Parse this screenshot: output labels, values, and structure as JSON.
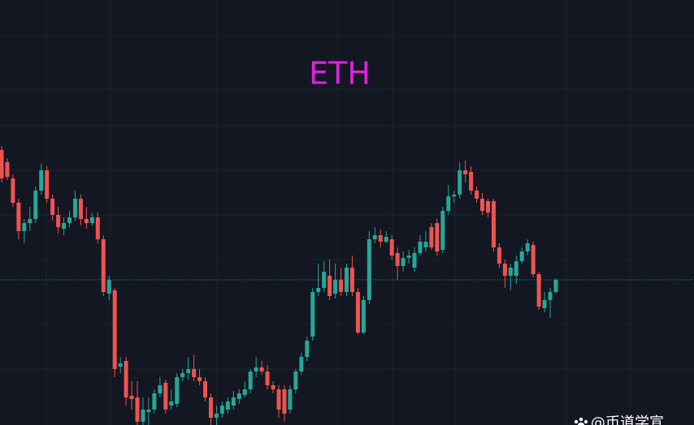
{
  "chart_data": {
    "type": "candlestick",
    "title": "ETH",
    "watermark": "@币道学宣",
    "up_color": "#26a69a",
    "down_color": "#ef5350",
    "title_color": "#e020e0",
    "price_line_color": "#26a69a",
    "current_price": 179,
    "ylim": [
      0,
      524
    ],
    "open": [
      339,
      324,
      304,
      274,
      239,
      249,
      254,
      289,
      314,
      279,
      259,
      242,
      249,
      256,
      279,
      254,
      249,
      256,
      229,
      162,
      166,
      72,
      79,
      36,
      34,
      4,
      16,
      19,
      39,
      52,
      24,
      26,
      59,
      64,
      69,
      59,
      54,
      34,
      9,
      14,
      19,
      24,
      32,
      37,
      44,
      66,
      71,
      66,
      49,
      44,
      44,
      19,
      44,
      66,
      84,
      109,
      164,
      169,
      184,
      162,
      179,
      164,
      194,
      164,
      114,
      154,
      229,
      234,
      226,
      229,
      212,
      196,
      206,
      194,
      212,
      219,
      244,
      249,
      216,
      264,
      282,
      284,
      314,
      312,
      289,
      279,
      276,
      276,
      219,
      199,
      184,
      184,
      202,
      214,
      222,
      186,
      144,
      154,
      164
    ],
    "high": [
      344,
      329,
      309,
      279,
      254,
      269,
      294,
      322,
      319,
      284,
      269,
      256,
      264,
      289,
      284,
      269,
      262,
      262,
      234,
      184,
      169,
      84,
      84,
      54,
      54,
      34,
      34,
      44,
      59,
      56,
      44,
      64,
      69,
      84,
      86,
      69,
      59,
      39,
      24,
      29,
      34,
      42,
      44,
      54,
      69,
      84,
      79,
      74,
      54,
      49,
      49,
      49,
      69,
      89,
      109,
      169,
      199,
      202,
      204,
      199,
      194,
      199,
      209,
      169,
      159,
      239,
      244,
      241,
      239,
      234,
      219,
      214,
      216,
      219,
      234,
      239,
      249,
      254,
      269,
      296,
      289,
      324,
      326,
      319,
      294,
      286,
      279,
      279,
      224,
      204,
      199,
      209,
      219,
      229,
      226,
      189,
      164,
      169,
      181
    ],
    "low": [
      299,
      302,
      269,
      229,
      224,
      239,
      249,
      284,
      274,
      252,
      236,
      234,
      244,
      252,
      246,
      242,
      246,
      224,
      159,
      154,
      59,
      64,
      24,
      19,
      0,
      0,
      0,
      14,
      34,
      14,
      19,
      22,
      54,
      56,
      54,
      49,
      29,
      0,
      0,
      9,
      14,
      19,
      26,
      34,
      39,
      59,
      62,
      44,
      39,
      9,
      4,
      14,
      39,
      62,
      79,
      104,
      159,
      164,
      154,
      156,
      159,
      159,
      159,
      112,
      112,
      149,
      224,
      219,
      224,
      204,
      179,
      189,
      199,
      189,
      209,
      214,
      216,
      209,
      212,
      259,
      274,
      279,
      299,
      284,
      274,
      259,
      256,
      214,
      194,
      169,
      166,
      174,
      199,
      209,
      182,
      142,
      139,
      132,
      162
    ],
    "close": [
      304,
      306,
      274,
      239,
      249,
      254,
      289,
      314,
      279,
      259,
      244,
      249,
      256,
      279,
      254,
      249,
      256,
      229,
      164,
      179,
      69,
      76,
      34,
      32,
      4,
      19,
      19,
      39,
      49,
      19,
      29,
      59,
      64,
      69,
      59,
      54,
      34,
      9,
      14,
      24,
      29,
      34,
      39,
      44,
      66,
      71,
      66,
      49,
      44,
      19,
      14,
      44,
      66,
      84,
      104,
      164,
      169,
      189,
      159,
      179,
      164,
      194,
      164,
      114,
      154,
      229,
      234,
      226,
      232,
      209,
      196,
      206,
      209,
      212,
      226,
      226,
      219,
      214,
      264,
      282,
      284,
      314,
      309,
      289,
      279,
      264,
      262,
      219,
      199,
      184,
      194,
      202,
      214,
      224,
      186,
      146,
      154,
      164,
      179
    ]
  }
}
